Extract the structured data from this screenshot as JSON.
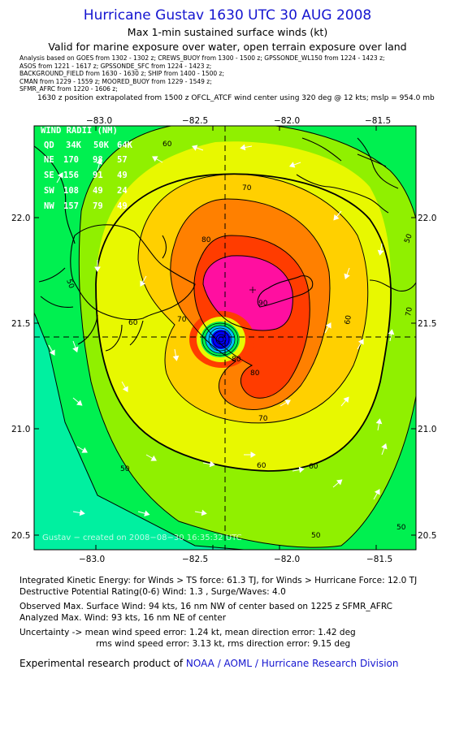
{
  "header": {
    "title": "Hurricane Gustav 1630 UTC 30 AUG 2008",
    "subtitle1": "Max 1-min sustained surface winds (kt)",
    "subtitle2": "Valid for marine exposure over water, open terrain exposure over land"
  },
  "sources": [
    "Analysis based on   GOES from 1302 - 1302 z;   CREWS_BUOY from 1300 - 1500 z;   GPSSONDE_WL150 from 1224 - 1423 z;",
    "ASOS from 1221 - 1617 z;   GPSSONDE_SFC from 1224 - 1423 z;",
    "BACKGROUND_FIELD from 1630 - 1630 z;   SHIP from 1400 - 1500 z;",
    "CMAN from 1229 - 1559 z;   MOORED_BUOY from 1229 - 1549 z;",
    "SFMR_AFRC from 1220 - 1606 z;"
  ],
  "position_note": "1630 z position extrapolated from 1500 z OFCL_ATCF wind center using 320 deg @ 12 kts; mslp = 954.0 mb",
  "map": {
    "lon_ticks": [
      "−83.0",
      "−82.5",
      "−82.0",
      "−81.5"
    ],
    "lat_ticks": [
      "22.0",
      "21.5",
      "21.0",
      "20.5"
    ],
    "contour_labels": [
      "60",
      "70",
      "80",
      "90",
      "70",
      "60",
      "80",
      "50",
      "60",
      "50",
      "60",
      "70",
      "80",
      "50",
      "50",
      "60",
      "70",
      "50"
    ],
    "watermark": "Gustav − created on 2008−08−30 16:35:32 UTC",
    "colors": {
      "c30": "#00f0a0",
      "c40": "#00f050",
      "c50": "#90f000",
      "c60": "#e8f800",
      "c70": "#ffd000",
      "c80": "#ff8000",
      "c90": "#ff3c00",
      "c100": "#ff0fa0",
      "eye_outer": "#00c0ff",
      "eye_inner": "#0000ff"
    }
  },
  "wind_radii": {
    "title": "WIND RADII (NM)",
    "headers": [
      "QD",
      "34K",
      "50K",
      "64K"
    ],
    "rows": [
      [
        "NE",
        "170",
        "98",
        "57"
      ],
      [
        "SE",
        "156",
        "91",
        "49"
      ],
      [
        "SW",
        "108",
        "49",
        "24"
      ],
      [
        "NW",
        "157",
        "79",
        "49"
      ]
    ]
  },
  "info": {
    "ike": "Integrated Kinetic Energy:  for Winds > TS force: 61.3 TJ,  for Winds > Hurricane Force: 12.0 TJ",
    "dpr": "Destructive Potential Rating(0-6)   Wind: 1.3 , Surge/Waves: 4.0",
    "observed": "Observed Max. Surface Wind: 94 kts, 16 nm NW of center based on 1225 z SFMR_AFRC",
    "analyzed": "Analyzed Max. Wind: 93 kts, 16 nm NE of center",
    "unc1": "Uncertainty -> mean wind speed error: 1.24 kt,   mean direction error: 1.42 deg",
    "unc2": "rms wind speed error: 3.13 kt,   rms direction error: 9.15 deg"
  },
  "credit": {
    "prefix": "Experimental research product of ",
    "org": "NOAA / AOML / Hurricane Research Division"
  }
}
